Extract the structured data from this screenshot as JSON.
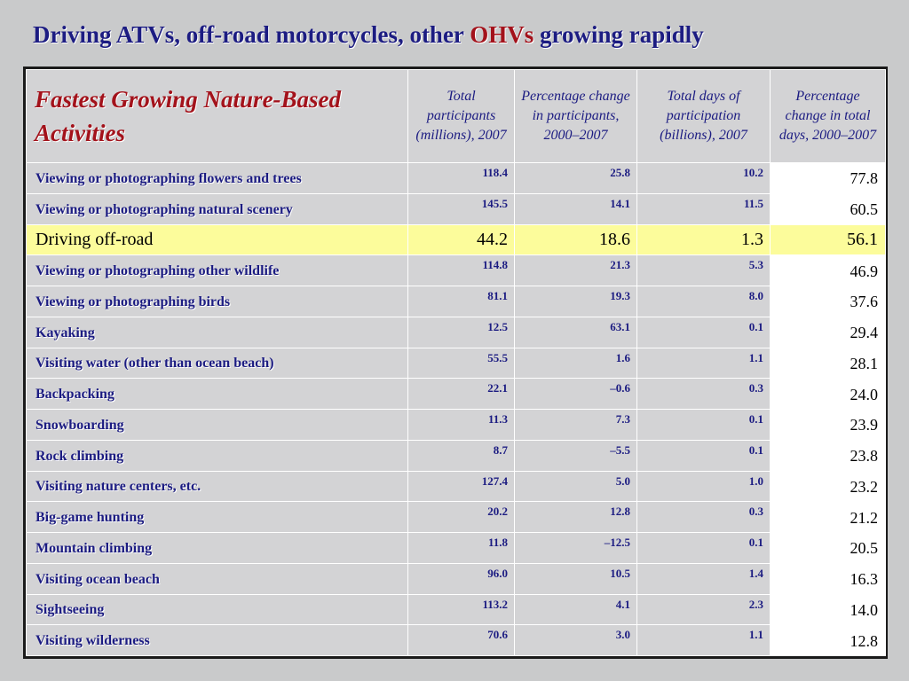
{
  "title": {
    "prefix": "Driving ATVs, off-road motorcycles, other ",
    "accent": "OHVs",
    "suffix": " growing rapidly"
  },
  "table": {
    "heading": "Fastest Growing Nature-Based Activities",
    "columns": [
      "Total participants (millions), 2007",
      "Percentage change in participants, 2000–2007",
      "Total days of participation (billions), 2007",
      "Percentage change in total days, 2000–2007"
    ],
    "rows": [
      {
        "activity": "Viewing or photographing flowers and trees",
        "participants": "118.4",
        "pct_participants": "25.8",
        "days": "10.2",
        "pct_days": "77.8"
      },
      {
        "activity": "Viewing or photographing natural scenery",
        "participants": "145.5",
        "pct_participants": "14.1",
        "days": "11.5",
        "pct_days": "60.5"
      },
      {
        "activity": "Driving off-road",
        "participants": "44.2",
        "pct_participants": "18.6",
        "days": "1.3",
        "pct_days": "56.1"
      },
      {
        "activity": "Viewing or photographing other wildlife",
        "participants": "114.8",
        "pct_participants": "21.3",
        "days": "5.3",
        "pct_days": "46.9"
      },
      {
        "activity": "Viewing or photographing birds",
        "participants": "81.1",
        "pct_participants": "19.3",
        "days": "8.0",
        "pct_days": "37.6"
      },
      {
        "activity": "Kayaking",
        "participants": "12.5",
        "pct_participants": "63.1",
        "days": "0.1",
        "pct_days": "29.4"
      },
      {
        "activity": "Visiting water (other than ocean beach)",
        "participants": "55.5",
        "pct_participants": "1.6",
        "days": "1.1",
        "pct_days": "28.1"
      },
      {
        "activity": "Backpacking",
        "participants": "22.1",
        "pct_participants": "–0.6",
        "days": "0.3",
        "pct_days": "24.0"
      },
      {
        "activity": "Snowboarding",
        "participants": "11.3",
        "pct_participants": "7.3",
        "days": "0.1",
        "pct_days": "23.9"
      },
      {
        "activity": "Rock climbing",
        "participants": "8.7",
        "pct_participants": "–5.5",
        "days": "0.1",
        "pct_days": "23.8"
      },
      {
        "activity": "Visiting nature centers, etc.",
        "participants": "127.4",
        "pct_participants": "5.0",
        "days": "1.0",
        "pct_days": "23.2"
      },
      {
        "activity": "Big-game hunting",
        "participants": "20.2",
        "pct_participants": "12.8",
        "days": "0.3",
        "pct_days": "21.2"
      },
      {
        "activity": "Mountain climbing",
        "participants": "11.8",
        "pct_participants": "–12.5",
        "days": "0.1",
        "pct_days": "20.5"
      },
      {
        "activity": "Visiting ocean beach",
        "participants": "96.0",
        "pct_participants": "10.5",
        "days": "1.4",
        "pct_days": "16.3"
      },
      {
        "activity": "Sightseeing",
        "participants": "113.2",
        "pct_participants": "4.1",
        "days": "2.3",
        "pct_days": "14.0"
      },
      {
        "activity": "Visiting wilderness",
        "participants": "70.6",
        "pct_participants": "3.0",
        "days": "1.1",
        "pct_days": "12.8"
      }
    ],
    "highlight_row": "Driving off-road"
  },
  "colors": {
    "background": "#c9cacb",
    "title_text": "#1c1c82",
    "accent_text": "#a3121b",
    "highlight_row": "#fcfc9b",
    "last_column": "#ffffff"
  }
}
